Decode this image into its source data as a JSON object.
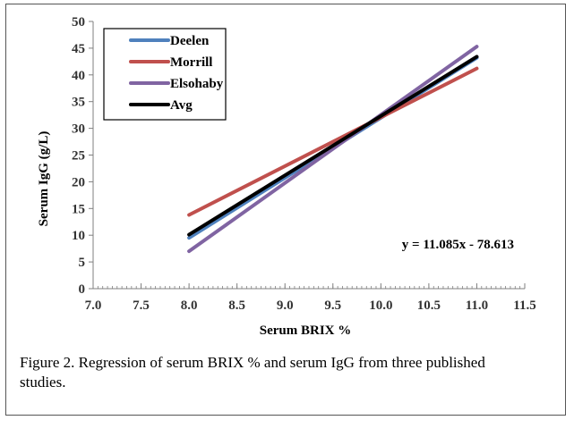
{
  "caption": "Figure 2.  Regression of serum BRIX % and serum IgG from three published studies.",
  "chart_data": {
    "type": "line",
    "xlabel": "Serum BRIX %",
    "ylabel": "Serum IgG (g/L)",
    "xlim": [
      7.0,
      11.5
    ],
    "ylim": [
      0,
      50
    ],
    "x_ticks": [
      "7.0",
      "7.5",
      "8.0",
      "8.5",
      "9.0",
      "9.5",
      "10.0",
      "10.5",
      "11.0",
      "11.5"
    ],
    "y_ticks": [
      "0",
      "5",
      "10",
      "15",
      "20",
      "25",
      "30",
      "35",
      "40",
      "45",
      "50"
    ],
    "x_minor_step": 0.05,
    "grid": false,
    "legend_position": "top-left",
    "annotation": "y = 11.085x - 78.613",
    "series": [
      {
        "name": "Deelen",
        "color": "#4f81bd",
        "x": [
          8.0,
          11.0
        ],
        "y": [
          9.5,
          43.2
        ]
      },
      {
        "name": "Morrill",
        "color": "#c0504d",
        "x": [
          8.0,
          11.0
        ],
        "y": [
          13.8,
          41.2
        ]
      },
      {
        "name": "Elsohaby",
        "color": "#8064a2",
        "x": [
          8.0,
          11.0
        ],
        "y": [
          7.0,
          45.3
        ]
      },
      {
        "name": "Avg",
        "color": "#000000",
        "x": [
          8.0,
          11.0
        ],
        "y": [
          10.1,
          43.4
        ]
      }
    ]
  }
}
